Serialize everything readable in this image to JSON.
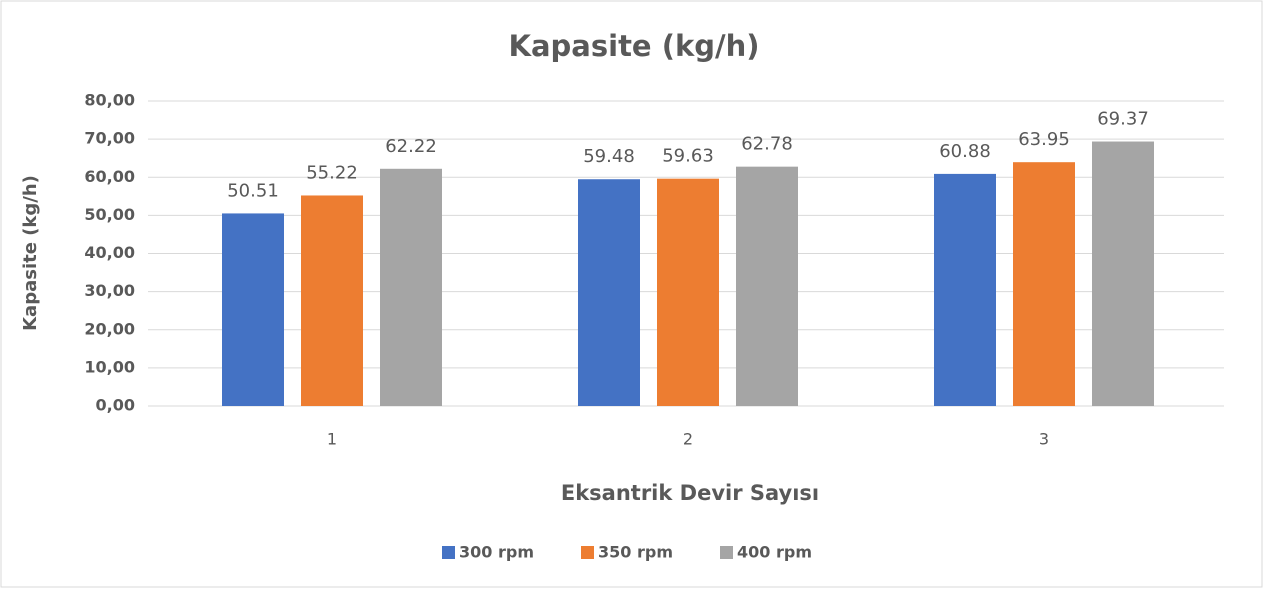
{
  "chart_data": {
    "type": "bar",
    "title": "Kapasite (kg/h)",
    "x_label": "Eksantrik Devir Sayısı",
    "y_label": "Kapasite (kg/h)",
    "categories": [
      "1",
      "2",
      "3"
    ],
    "series": [
      {
        "name": "300 rpm",
        "color": "#4472c4",
        "values": [
          50.51,
          59.48,
          60.88
        ]
      },
      {
        "name": "350 rpm",
        "color": "#ed7d31",
        "values": [
          55.22,
          59.63,
          63.95
        ]
      },
      {
        "name": "400 rpm",
        "color": "#a5a5a5",
        "values": [
          62.22,
          62.78,
          69.37
        ]
      }
    ],
    "ylim": [
      0,
      80
    ],
    "yticks": [
      {
        "value": 0,
        "label": "0,00"
      },
      {
        "value": 10,
        "label": "10,00"
      },
      {
        "value": 20,
        "label": "20,00"
      },
      {
        "value": 30,
        "label": "30,00"
      },
      {
        "value": 40,
        "label": "40,00"
      },
      {
        "value": 50,
        "label": "50,00"
      },
      {
        "value": 60,
        "label": "60,00"
      },
      {
        "value": 70,
        "label": "70,00"
      },
      {
        "value": 80,
        "label": "80,00"
      }
    ],
    "grid": true,
    "legend": "bottom"
  }
}
